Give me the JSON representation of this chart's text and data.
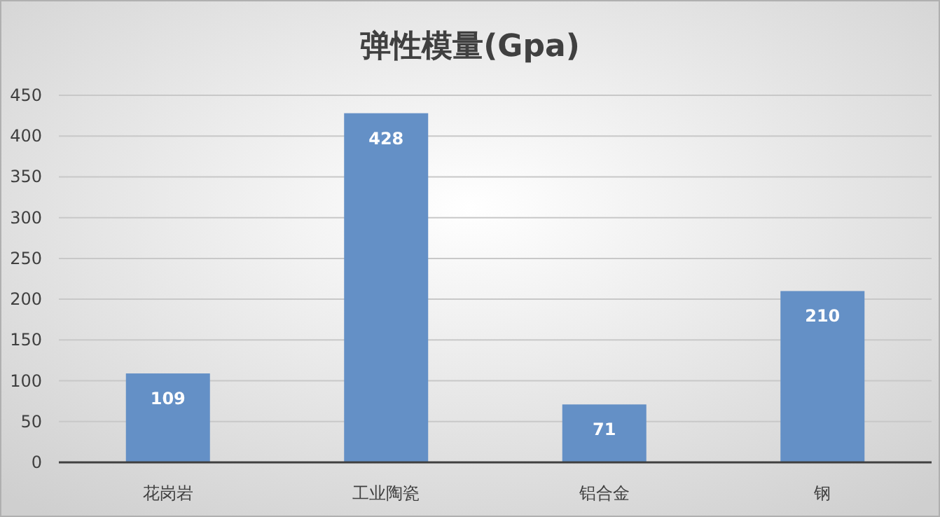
{
  "chart_data": {
    "type": "bar",
    "title": "弹性模量(Gpa)",
    "categories": [
      "花岗岩",
      "工业陶瓷",
      "铝合金",
      "钢"
    ],
    "values": [
      109,
      428,
      71,
      210
    ],
    "color": "#6490c6",
    "ylim": [
      0,
      450
    ],
    "yticks": [
      0,
      50,
      100,
      150,
      200,
      250,
      300,
      350,
      400,
      450
    ],
    "grid": "y",
    "data_labels": true
  }
}
